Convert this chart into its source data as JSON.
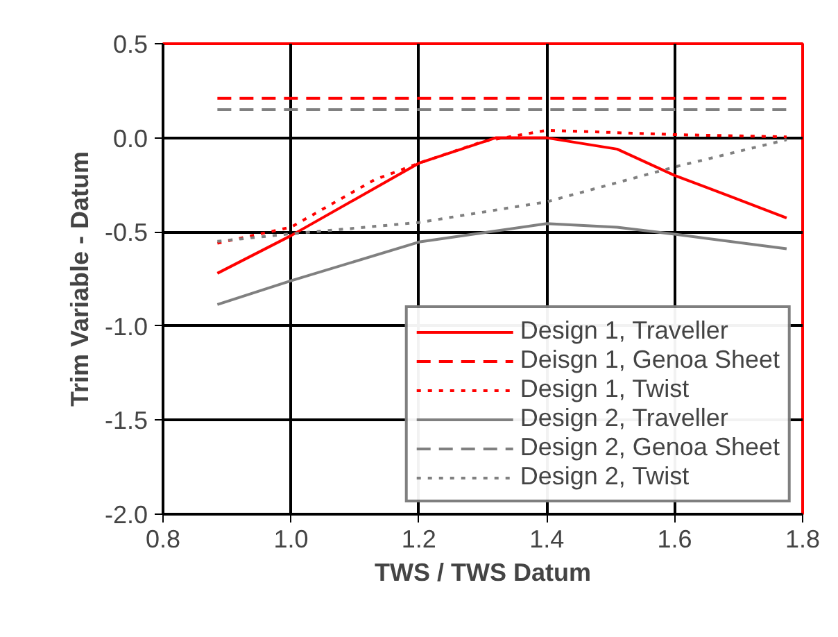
{
  "chart_data": {
    "type": "line",
    "xlabel": "TWS / TWS Datum",
    "ylabel": "Trim Variable - Datum",
    "xlim": [
      0.8,
      1.8
    ],
    "ylim": [
      -2.0,
      0.5
    ],
    "xticks": [
      0.8,
      {
        "value": 1.0,
        "label": "1.0"
      },
      1.2,
      1.4,
      1.6,
      1.8
    ],
    "yticks": [
      0.5,
      {
        "value": 0,
        "label": "0.0"
      },
      -0.5,
      {
        "value": -1.0,
        "label": "-1.0"
      },
      -1.5,
      {
        "value": -2.0,
        "label": "-2.0"
      }
    ],
    "grid": true,
    "legend": "bottom right",
    "series": [
      {
        "name": "Design 1, Traveller",
        "color": "#ff0000",
        "line_style": "solid",
        "x": [
          0.885,
          1.0,
          1.2,
          1.32,
          1.4,
          1.51,
          1.6,
          1.69,
          1.775
        ],
        "values": [
          -0.72,
          -0.52,
          -0.135,
          0.0,
          0.0,
          -0.06,
          -0.2,
          -0.315,
          -0.426
        ]
      },
      {
        "name": "Deisgn 1, Genoa Sheet",
        "color": "#ff0000",
        "line_style": "dashed",
        "x": [
          0.885,
          1.775
        ],
        "values": [
          0.21,
          0.21
        ]
      },
      {
        "name": "Design 1, Twist",
        "color": "#ff0000",
        "line_style": "dotted",
        "x": [
          0.885,
          1.0,
          1.13,
          1.2,
          1.3,
          1.4,
          1.6,
          1.775
        ],
        "values": [
          -0.56,
          -0.475,
          -0.224,
          -0.135,
          -0.02,
          0.04,
          0.017,
          0.005
        ]
      },
      {
        "name": "Design 2, Traveller",
        "color": "#808080",
        "line_style": "solid",
        "x": [
          0.885,
          1.0,
          1.2,
          1.4,
          1.51,
          1.6,
          1.775
        ],
        "values": [
          -0.886,
          -0.76,
          -0.554,
          -0.456,
          -0.475,
          -0.512,
          -0.59
        ]
      },
      {
        "name": "Design 2, Genoa Sheet",
        "color": "#808080",
        "line_style": "dashed",
        "x": [
          0.885,
          1.775
        ],
        "values": [
          0.15,
          0.15
        ]
      },
      {
        "name": "Design 2, Twist",
        "color": "#808080",
        "line_style": "dotted",
        "x": [
          0.885,
          1.0,
          1.2,
          1.4,
          1.6,
          1.775
        ],
        "values": [
          -0.55,
          -0.51,
          -0.45,
          -0.34,
          -0.155,
          -0.01
        ]
      }
    ]
  }
}
